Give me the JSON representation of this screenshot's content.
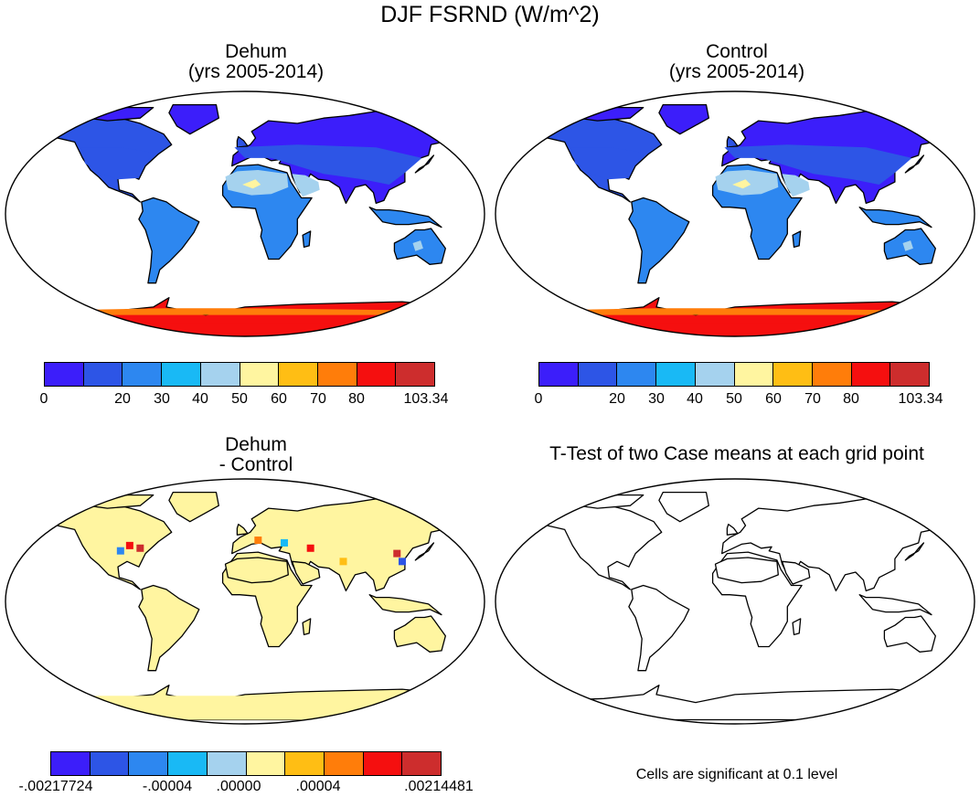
{
  "title": "DJF FSRND (W/m^2)",
  "panels": {
    "dehum": {
      "title_line1": "Dehum",
      "title_line2": "(yrs 2005-2014)"
    },
    "control": {
      "title_line1": "Control",
      "title_line2": "(yrs 2005-2014)"
    },
    "diff": {
      "title_line1": "Dehum",
      "title_line2": "- Control"
    },
    "ttest": {
      "title_line1": "T-Test of two Case means at each grid point"
    }
  },
  "colorbars": {
    "main": {
      "colors": [
        "#3c1efa",
        "#2d55e6",
        "#2d87f0",
        "#19b9f5",
        "#a5d2ee",
        "#fff5a0",
        "#ffbe14",
        "#ff7d0a",
        "#f50f0f",
        "#cd2d2d"
      ],
      "labels": [
        "0",
        "20",
        "30",
        "40",
        "50",
        "60",
        "70",
        "80",
        "103.34"
      ]
    },
    "diff": {
      "colors": [
        "#3c1efa",
        "#2d55e6",
        "#2d87f0",
        "#19b9f5",
        "#a5d2ee",
        "#fff5a0",
        "#ffbe14",
        "#ff7d0a",
        "#f50f0f",
        "#cd2d2d"
      ],
      "labels": [
        "-.00217724",
        "-.00004",
        ".00000",
        ".00004",
        ".00214481"
      ]
    }
  },
  "footnote": "Cells are significant at 0.1 level",
  "map_data": {
    "projection": "robinson",
    "land_colors": {
      "dehum": {
        "high_latitude": "#3c1efa",
        "mid_latitude": "#2d55e6",
        "tropics": "#2d87f0",
        "deserts": "#a5d2ee",
        "antarctica": "#f50f0f"
      },
      "control": {
        "high_latitude": "#3c1efa",
        "mid_latitude": "#2d55e6",
        "tropics": "#2d87f0",
        "deserts": "#a5d2ee",
        "antarctica": "#f50f0f"
      },
      "diff": {
        "land": "#fff5a0"
      },
      "ttest": {
        "land": "#ffffff"
      }
    }
  }
}
